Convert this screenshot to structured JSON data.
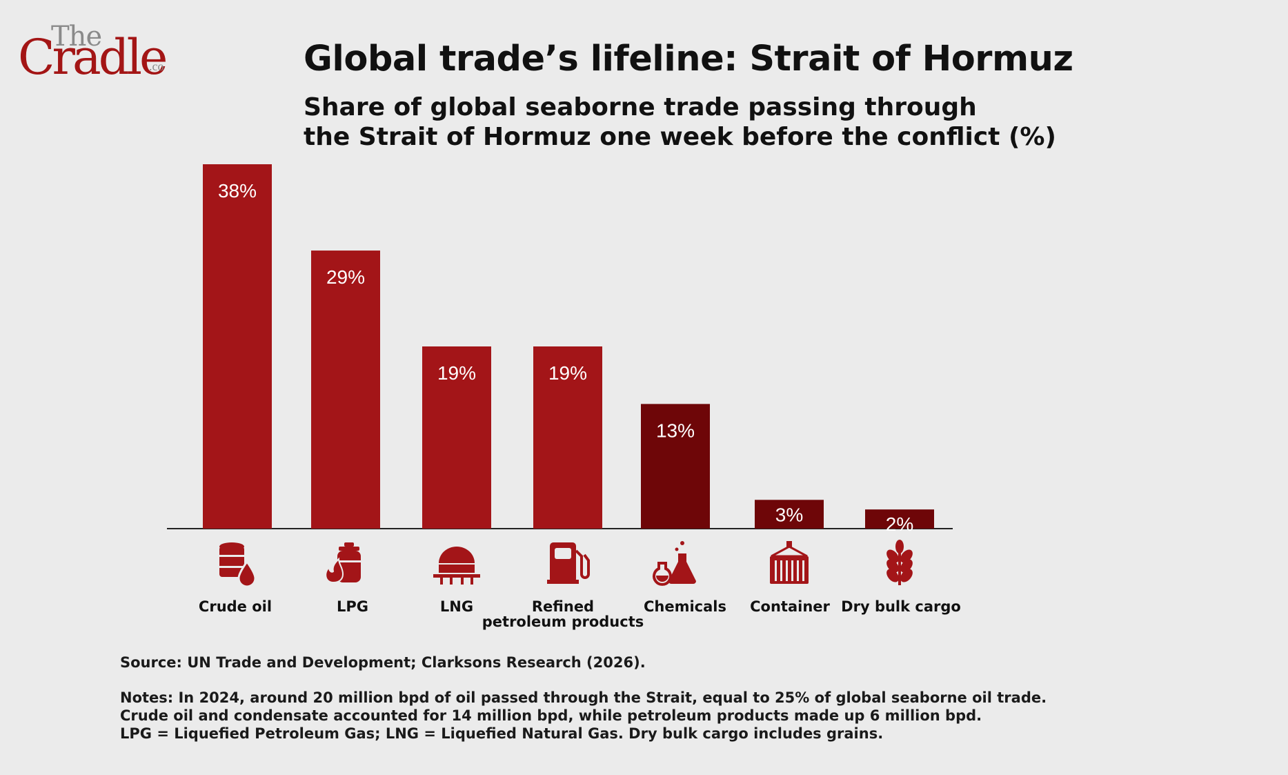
{
  "logo": {
    "the": "The",
    "cradle": "Cradle",
    "co": ".co"
  },
  "title": "Global trade’s lifeline: Strait of Hormuz",
  "subtitle_lines": [
    "Share of global seaborne trade passing through",
    "the Strait of Hormuz one week before the conflict (%)"
  ],
  "colors": {
    "bar": "#a31518",
    "bar_dark": "#6e0608",
    "icon": "#a31518",
    "background": "#ebebeb"
  },
  "chart_data": {
    "type": "bar",
    "categories": [
      "Crude oil",
      "LPG",
      "LNG",
      "Refined petroleum products",
      "Chemicals",
      "Container",
      "Dry bulk cargo"
    ],
    "category_lines": [
      [
        "Crude oil"
      ],
      [
        "LPG"
      ],
      [
        "LNG"
      ],
      [
        "Refined",
        "petroleum products"
      ],
      [
        "Chemicals"
      ],
      [
        "Container"
      ],
      [
        "Dry bulk cargo"
      ]
    ],
    "values": [
      38,
      29,
      19,
      19,
      13,
      3,
      2
    ],
    "value_labels": [
      "38%",
      "29%",
      "19%",
      "19%",
      "13%",
      "3%",
      "2%"
    ],
    "bar_color_keys": [
      "bar",
      "bar",
      "bar",
      "bar",
      "bar_dark",
      "bar_dark",
      "bar_dark"
    ],
    "icons": [
      "oil-barrel-icon",
      "lpg-cylinder-icon",
      "lng-tank-icon",
      "fuel-pump-icon",
      "chemical-flask-icon",
      "shipping-container-icon",
      "wheat-grain-icon"
    ],
    "ylim": [
      0,
      38
    ],
    "grid": false,
    "legend": "none"
  },
  "footer": {
    "source": "Source: UN Trade and Development; Clarksons Research (2026).",
    "notes": [
      "Notes: In 2024, around 20 million bpd of oil passed through the Strait, equal to 25% of global seaborne oil trade.",
      "Crude oil and condensate accounted for 14 million bpd, while petroleum products made up 6 million bpd.",
      "LPG = Liquefied Petroleum Gas; LNG = Liquefied Natural Gas. Dry bulk cargo includes grains."
    ]
  }
}
